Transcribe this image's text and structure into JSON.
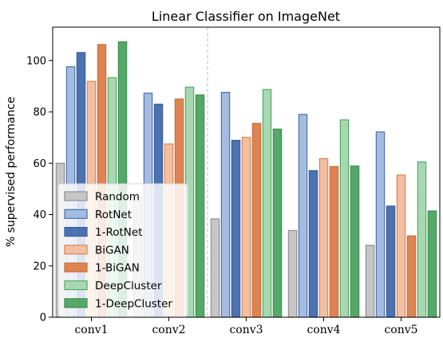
{
  "chart_data": {
    "type": "bar",
    "title": "Linear Classifier on ImageNet",
    "xlabel": "",
    "ylabel": "% supervised performance",
    "ylim": [
      0,
      113
    ],
    "yticks": [
      0,
      20,
      40,
      60,
      80,
      100
    ],
    "grid": false,
    "legend_position": "lower-left",
    "divider_after_category": "conv2",
    "categories": [
      "conv1",
      "conv2",
      "conv3",
      "conv4",
      "conv5"
    ],
    "series": [
      {
        "name": "Random",
        "fill": "#c6c6c6",
        "edge": "#909090",
        "values": [
          60.0,
          47.0,
          38.3,
          33.8,
          28.0
        ]
      },
      {
        "name": "RotNet",
        "fill": "#a5bbdf",
        "edge": "#4c72b0",
        "values": [
          97.6,
          87.3,
          87.6,
          79.0,
          72.2
        ]
      },
      {
        "name": "1-RotNet",
        "fill": "#4c72b0",
        "edge": "#3a5f99",
        "values": [
          103.1,
          83.0,
          68.9,
          57.1,
          43.3
        ]
      },
      {
        "name": "BiGAN",
        "fill": "#f2bfa2",
        "edge": "#dd8452",
        "values": [
          91.9,
          67.5,
          70.1,
          61.8,
          55.4
        ]
      },
      {
        "name": "1-BiGAN",
        "fill": "#dd8452",
        "edge": "#c8703e",
        "values": [
          106.2,
          85.0,
          75.5,
          58.7,
          31.7
        ]
      },
      {
        "name": "DeepCluster",
        "fill": "#a8d8b0",
        "edge": "#55a868",
        "values": [
          93.3,
          89.6,
          88.7,
          76.9,
          60.5
        ]
      },
      {
        "name": "1-DeepCluster",
        "fill": "#55a868",
        "edge": "#3f8f52",
        "values": [
          107.3,
          86.6,
          73.3,
          58.9,
          41.4
        ]
      }
    ]
  }
}
